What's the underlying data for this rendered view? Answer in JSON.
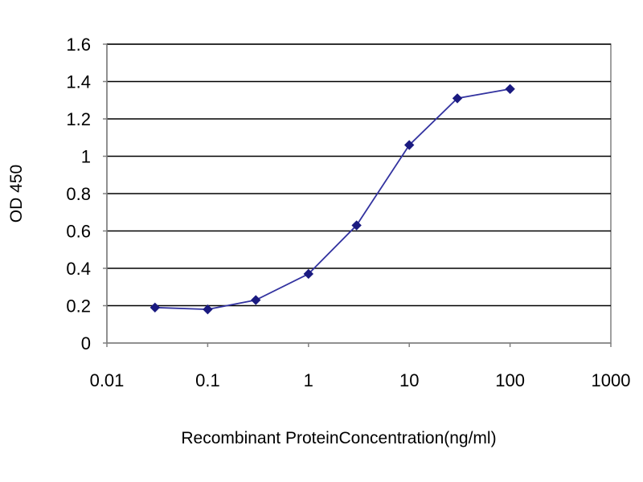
{
  "chart_data": {
    "type": "line",
    "title": "",
    "xlabel": "Recombinant ProteinConcentration(ng/ml)",
    "ylabel": "OD 450",
    "x_scale": "log",
    "xlim": [
      0.01,
      1000
    ],
    "ylim": [
      0,
      1.6
    ],
    "x_ticks": [
      "0.01",
      "0.1",
      "1",
      "10",
      "100",
      "1000"
    ],
    "y_ticks": [
      "0",
      "0.2",
      "0.4",
      "0.6",
      "0.8",
      "1",
      "1.2",
      "1.4",
      "1.6"
    ],
    "grid": "horizontal",
    "legend": "none",
    "series": [
      {
        "x": [
          0.03,
          0.1,
          0.3,
          1,
          3,
          10,
          30,
          100
        ],
        "y": [
          0.19,
          0.18,
          0.23,
          0.37,
          0.63,
          1.06,
          1.31,
          1.36
        ],
        "color": "#3333a0",
        "marker": "diamond",
        "marker_color": "#1a1a80"
      }
    ]
  }
}
